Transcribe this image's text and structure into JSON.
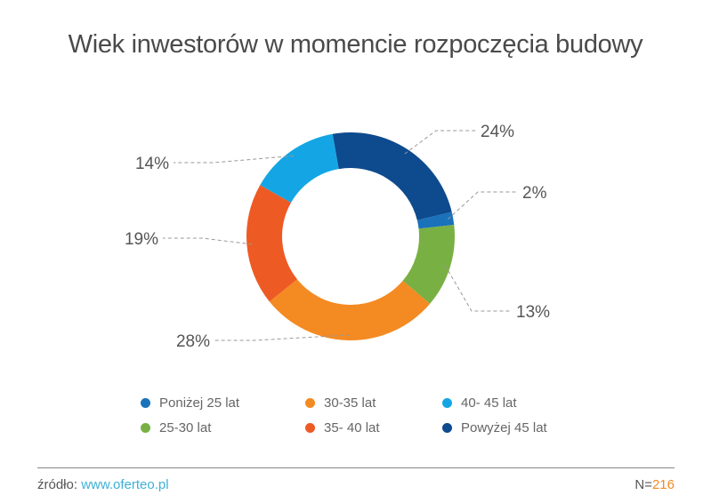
{
  "chart_data": {
    "type": "pie",
    "donut": true,
    "title": "Wiek inwestorów w momencie rozpoczęcia budowy",
    "slices": [
      {
        "name": "Powyżej 45 lat",
        "value": 24,
        "label": "24%",
        "color": "#0e4a8e"
      },
      {
        "name": "Poniżej 25 lat",
        "value": 2,
        "label": "2%",
        "color": "#1a72bb"
      },
      {
        "name": "25-30 lat",
        "value": 13,
        "label": "13%",
        "color": "#79b043"
      },
      {
        "name": "30-35 lat",
        "value": 28,
        "label": "28%",
        "color": "#f48a22"
      },
      {
        "name": "35- 40 lat",
        "value": 19,
        "label": "19%",
        "color": "#ee5a24"
      },
      {
        "name": "40- 45 lat",
        "value": 14,
        "label": "14%",
        "color": "#14a6e4"
      }
    ],
    "legend": [
      "Poniżej 25 lat",
      "30-35 lat",
      "40- 45 lat",
      "25-30 lat",
      "35- 40 lat",
      "Powyżej 45 lat"
    ],
    "legend_position": "bottom"
  },
  "footer": {
    "source_prefix": "źródło: ",
    "source_link": "www.oferteo.pl",
    "n_prefix": "N=",
    "n_value": "216"
  }
}
